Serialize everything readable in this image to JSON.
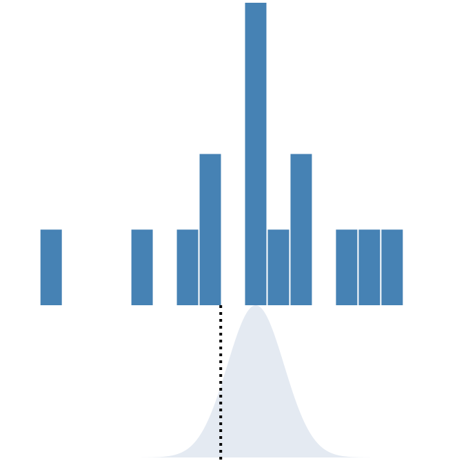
{
  "colors": {
    "bar": "#4682b4",
    "density": "#e4eaf2",
    "marker": "#000000",
    "background": "#ffffff"
  },
  "chart_data": {
    "type": "bar",
    "title": "",
    "xlabel": "",
    "ylabel": "",
    "grid": false,
    "legend": "none",
    "bin_width": 1,
    "x": [
      0,
      4,
      6,
      7,
      9,
      10,
      11,
      13,
      14,
      15
    ],
    "counts": [
      1,
      1,
      1,
      2,
      4,
      1,
      2,
      1,
      1,
      1
    ],
    "xlim": [
      -1.75,
      18.75
    ],
    "ylim": [
      0,
      4
    ],
    "density": {
      "type": "area",
      "mean": 9.5,
      "sd": 1.25,
      "normalized_peak": 1.0
    },
    "marker_line": {
      "style": "dotted",
      "x": 7.96
    }
  }
}
